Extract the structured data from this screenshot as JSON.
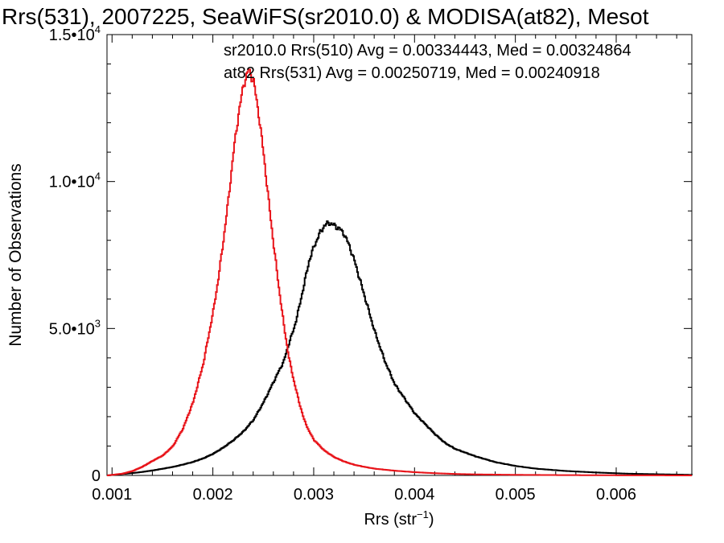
{
  "chart_data": {
    "type": "line",
    "title": "Rrs(531), 2007225, SeaWiFS(sr2010.0) & MODISA(at82), Mesot",
    "xlabel": "Rrs (str",
    "xlabel_sup": "−1",
    "xlabel_tail": ")",
    "ylabel": "Number of Observations",
    "xlim": [
      0.00095,
      0.00675
    ],
    "ylim": [
      0,
      15000
    ],
    "xticks": [
      {
        "value": 0.001,
        "label": "0.001"
      },
      {
        "value": 0.002,
        "label": "0.002"
      },
      {
        "value": 0.003,
        "label": "0.003"
      },
      {
        "value": 0.004,
        "label": "0.004"
      },
      {
        "value": 0.005,
        "label": "0.005"
      },
      {
        "value": 0.006,
        "label": "0.006"
      }
    ],
    "yticks": [
      {
        "value": 0,
        "mantissa": "0",
        "exp": ""
      },
      {
        "value": 5000,
        "mantissa": "5.0•10",
        "exp": "3"
      },
      {
        "value": 10000,
        "mantissa": "1.0•10",
        "exp": "4"
      },
      {
        "value": 15000,
        "mantissa": "1.5•10",
        "exp": "4"
      }
    ],
    "grid": false,
    "legend_placement": "top-right",
    "annotations": [
      {
        "text": "sr2010.0 Rrs(510) Avg = 0.00334443, Med = 0.00324864",
        "color": "#000000"
      },
      {
        "text": "at82 Rrs(531) Avg = 0.00250719, Med = 0.00240918",
        "color": "#e8141a"
      }
    ],
    "series": [
      {
        "color": "#000000",
        "x": [
          0.00095,
          0.0011,
          0.0012,
          0.0013,
          0.0014,
          0.0015,
          0.0016,
          0.0017,
          0.0018,
          0.0019,
          0.002,
          0.0021,
          0.0022,
          0.0023,
          0.0024,
          0.0025,
          0.0026,
          0.0027,
          0.00275,
          0.0028,
          0.00285,
          0.0029,
          0.00295,
          0.003,
          0.00305,
          0.0031,
          0.00315,
          0.0032,
          0.00325,
          0.0033,
          0.00335,
          0.0034,
          0.00345,
          0.0035,
          0.00355,
          0.0036,
          0.00365,
          0.0037,
          0.00375,
          0.0038,
          0.0039,
          0.004,
          0.0041,
          0.0042,
          0.0043,
          0.0044,
          0.0046,
          0.0048,
          0.005,
          0.0052,
          0.0055,
          0.0058,
          0.0061,
          0.0064,
          0.00675
        ],
        "y": [
          0,
          50,
          80,
          120,
          170,
          230,
          290,
          370,
          460,
          580,
          740,
          950,
          1200,
          1500,
          1900,
          2500,
          3200,
          3900,
          4500,
          5000,
          5700,
          6500,
          7300,
          7800,
          8200,
          8500,
          8600,
          8500,
          8400,
          8200,
          7800,
          7300,
          6700,
          6100,
          5500,
          4900,
          4400,
          3900,
          3500,
          3100,
          2600,
          2100,
          1750,
          1400,
          1100,
          900,
          650,
          450,
          320,
          230,
          150,
          100,
          60,
          40,
          20
        ]
      },
      {
        "color": "#e8141a",
        "x": [
          0.00095,
          0.0011,
          0.0012,
          0.0013,
          0.0014,
          0.0015,
          0.0016,
          0.0017,
          0.0018,
          0.0019,
          0.002,
          0.00205,
          0.0021,
          0.00215,
          0.0022,
          0.00225,
          0.0023,
          0.00235,
          0.0024,
          0.00245,
          0.0025,
          0.00255,
          0.0026,
          0.00265,
          0.0027,
          0.00275,
          0.0028,
          0.00285,
          0.0029,
          0.00295,
          0.003,
          0.0031,
          0.0032,
          0.0033,
          0.0034,
          0.0035,
          0.0036,
          0.0038,
          0.004,
          0.0042,
          0.0044,
          0.0046,
          0.005,
          0.0055,
          0.006,
          0.00675
        ],
        "y": [
          0,
          60,
          150,
          300,
          500,
          680,
          1000,
          1600,
          2500,
          3800,
          5600,
          6700,
          8000,
          9400,
          11000,
          12300,
          13300,
          13800,
          13400,
          12300,
          10900,
          9300,
          7800,
          6400,
          5100,
          4000,
          3200,
          2500,
          1900,
          1500,
          1200,
          850,
          620,
          470,
          360,
          290,
          230,
          160,
          110,
          75,
          50,
          35,
          20,
          10,
          5,
          0
        ]
      }
    ]
  }
}
